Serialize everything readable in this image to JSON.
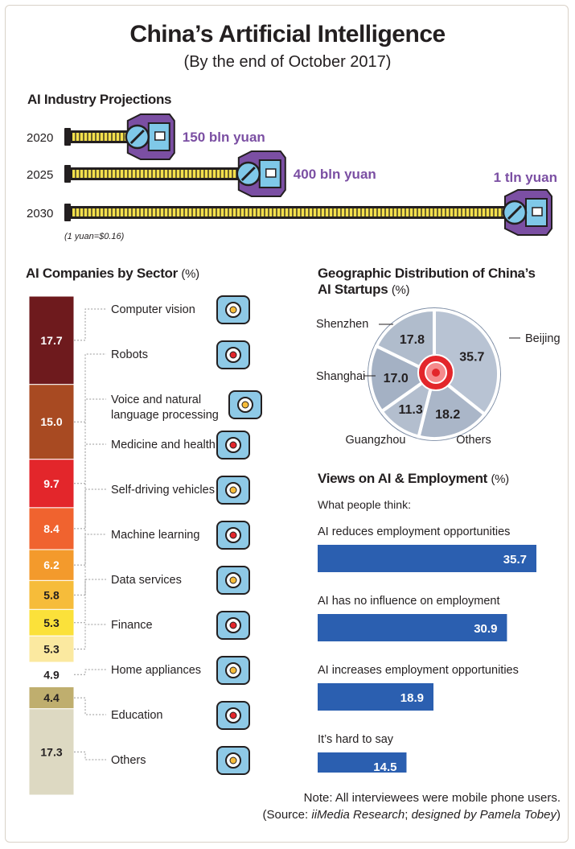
{
  "title": "China’s Artificial Intelligence",
  "subtitle": "(By the end of October 2017)",
  "colors": {
    "purple": "#7b4fa3",
    "yellow": "#f4e04c",
    "blue": "#2b5fb0",
    "dark": "#231f20"
  },
  "chart_data": [
    {
      "type": "bar",
      "title": "AI Industry Projections",
      "categories": [
        "2020",
        "2025",
        "2030"
      ],
      "values": [
        150,
        400,
        1000
      ],
      "value_labels": [
        "150 bln yuan",
        "400 bln yuan",
        "1 tln yuan"
      ],
      "unit": "bln yuan",
      "note": "(1 yuan=$0.16)"
    },
    {
      "type": "bar",
      "title": "AI Companies by Sector",
      "unit": "(%)",
      "categories": [
        "Computer vision",
        "Robots",
        "Voice and natural language processing",
        "Medicine and health",
        "Self-driving vehicles",
        "Machine learning",
        "Data services",
        "Finance",
        "Home appliances",
        "Education",
        "Others"
      ],
      "label_lines": [
        [
          "Computer vision"
        ],
        [
          "Robots"
        ],
        [
          "Voice and natural",
          "language processing"
        ],
        [
          "Medicine and health"
        ],
        [
          "Self-driving vehicles"
        ],
        [
          "Machine learning"
        ],
        [
          "Data services"
        ],
        [
          "Finance"
        ],
        [
          "Home appliances"
        ],
        [
          "Education"
        ],
        [
          "Others"
        ]
      ],
      "values": [
        17.7,
        15.0,
        9.7,
        8.4,
        6.2,
        5.8,
        5.3,
        5.3,
        4.9,
        4.4,
        17.3
      ],
      "value_labels": [
        "17.7",
        "15.0",
        "9.7",
        "8.4",
        "6.2",
        "5.8",
        "5.3",
        "5.3",
        "4.9",
        "4.4",
        "17.3"
      ],
      "colors": [
        "#6e1a1d",
        "#a84a22",
        "#e3262b",
        "#f0632f",
        "#f39a2c",
        "#f6bc3a",
        "#fbe13a",
        "#fbe9a0",
        "#ffffff",
        "#bfae6e",
        "#ddd9c2"
      ],
      "icons": [
        "webcam-icon",
        "robot-icon",
        "headset-icon",
        "monitor-heart-icon",
        "self-driving-car-icon",
        "chip-icon",
        "document-search-icon",
        "money-icon",
        "cup-icon",
        "graduation-cap-icon",
        "cloud-icon"
      ]
    },
    {
      "type": "pie",
      "title": "Geographic Distribution of China’s AI Startups",
      "title_lines": [
        "Geographic Distribution of China’s",
        "AI Startups"
      ],
      "unit": "(%)",
      "categories": [
        "Beijing",
        "Others",
        "Guangzhou",
        "Shanghai",
        "Shenzhen"
      ],
      "values": [
        35.7,
        18.2,
        11.3,
        17.0,
        17.8
      ],
      "value_labels": [
        "35.7",
        "18.2",
        "11.3",
        "17.0",
        "17.8"
      ]
    },
    {
      "type": "bar",
      "title": "Views on AI & Employment",
      "unit": "(%)",
      "subtitle": "What people think:",
      "categories": [
        "AI reduces employment opportunities",
        "AI has no influence on employment",
        "AI increases employment opportunities",
        "It’s hard to say"
      ],
      "values": [
        35.7,
        30.9,
        18.9,
        14.5
      ],
      "value_labels": [
        "35.7",
        "30.9",
        "18.9",
        "14.5"
      ],
      "xlim": [
        0,
        35.7
      ]
    }
  ],
  "note": "Note: All interviewees were mobile phone users.",
  "source": {
    "prefix": "(Source: ",
    "name": "iiMedia Research",
    "middle": "; ",
    "designer": "designed by Pamela Tobey",
    "suffix": ")"
  }
}
